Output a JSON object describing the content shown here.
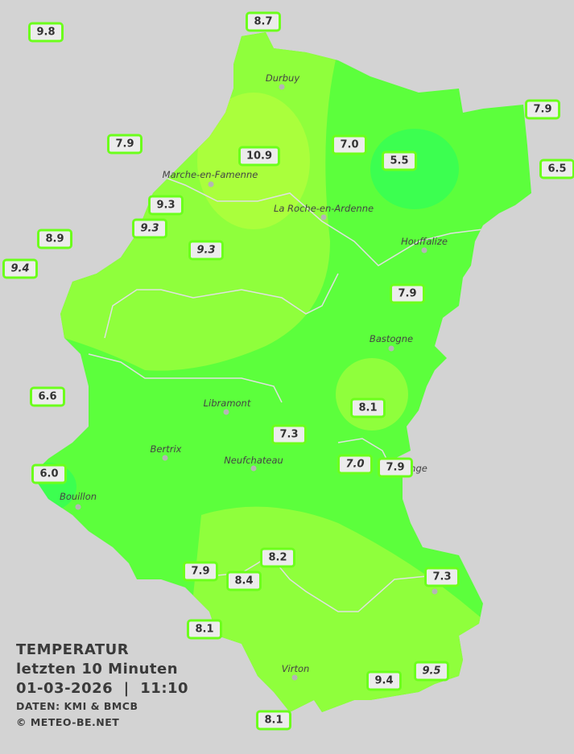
{
  "legend": {
    "title": "TEMPERATUR",
    "subtitle": "letzten 10 Minuten",
    "datetime": "01-03-2026  |  11:10",
    "source": "DATEN: KMI & BMCB",
    "copyright": "© METEO-BE.NET"
  },
  "colors": {
    "background": "#d3d3d3",
    "zone_5": "#3cff50",
    "zone_7": "#5cff3c",
    "zone_8": "#8fff3c",
    "zone_10": "#aaff3c",
    "label_border": "#6cff1c"
  },
  "cities": [
    "Durbuy",
    "Marche-en-Famenne",
    "La Roche-en-Ardenne",
    "Houffalize",
    "Bastogne",
    "Libramont",
    "Bertrix",
    "Neufchateau",
    "Bouillon",
    "Virton",
    "nge"
  ],
  "stations": [
    {
      "value": "9.8",
      "italic": false
    },
    {
      "value": "8.7",
      "italic": false
    },
    {
      "value": "7.9",
      "italic": false
    },
    {
      "value": "7.9",
      "italic": false
    },
    {
      "value": "10.9",
      "italic": false
    },
    {
      "value": "7.0",
      "italic": false
    },
    {
      "value": "5.5",
      "italic": false
    },
    {
      "value": "6.5",
      "italic": false
    },
    {
      "value": "9.3",
      "italic": false
    },
    {
      "value": "9.3",
      "italic": true
    },
    {
      "value": "8.9",
      "italic": false
    },
    {
      "value": "9.3",
      "italic": true
    },
    {
      "value": "9.4",
      "italic": true
    },
    {
      "value": "7.9",
      "italic": false
    },
    {
      "value": "6.6",
      "italic": false
    },
    {
      "value": "8.1",
      "italic": false
    },
    {
      "value": "7.3",
      "italic": false
    },
    {
      "value": "7.0",
      "italic": true
    },
    {
      "value": "7.9",
      "italic": false
    },
    {
      "value": "6.0",
      "italic": false
    },
    {
      "value": "8.2",
      "italic": false
    },
    {
      "value": "7.9",
      "italic": false
    },
    {
      "value": "8.4",
      "italic": false
    },
    {
      "value": "7.3",
      "italic": false
    },
    {
      "value": "8.1",
      "italic": false
    },
    {
      "value": "9.4",
      "italic": false
    },
    {
      "value": "9.5",
      "italic": true
    },
    {
      "value": "8.1",
      "italic": false
    }
  ]
}
